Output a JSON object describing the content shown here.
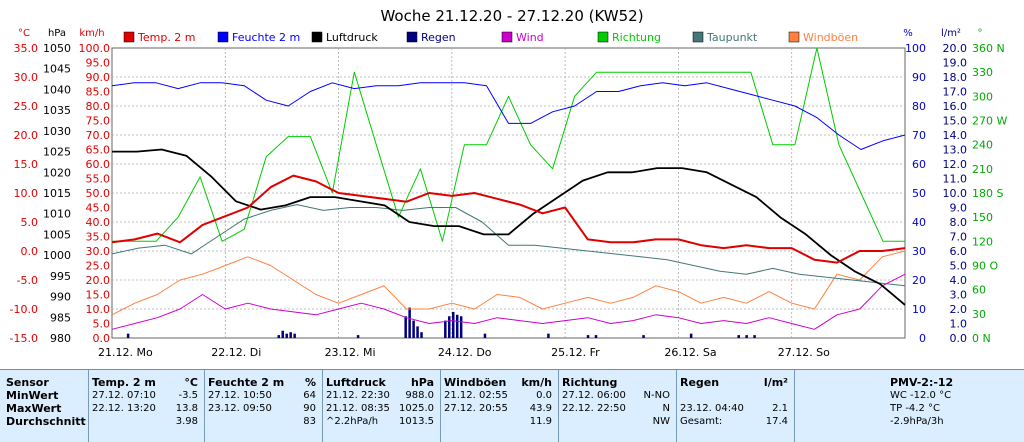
{
  "title": "Woche 21.12.20 - 27.12.20 (KW52)",
  "legend": [
    {
      "label": "Temp. 2 m",
      "color": "#e00000"
    },
    {
      "label": "Feuchte  2 m",
      "color": "#0000ff"
    },
    {
      "label": "Luftdruck",
      "color": "#000000"
    },
    {
      "label": "Regen",
      "color": "#000080"
    },
    {
      "label": "Wind",
      "color": "#cc00cc"
    },
    {
      "label": "Richtung",
      "color": "#00cc00"
    },
    {
      "label": "Taupunkt",
      "color": "#447777"
    },
    {
      "label": "Windböen",
      "color": "#ff8040"
    }
  ],
  "chart_data": {
    "type": "line",
    "title": "Woche 21.12.20 - 27.12.20 (KW52)",
    "x_labels": [
      "21.12.  Mo",
      "22.12.  Di",
      "23.12.  Mi",
      "24.12.  Do",
      "25.12.  Fr",
      "26.12.  Sa",
      "27.12.  So"
    ],
    "axes": {
      "temp": {
        "unit": "°C",
        "ticks": [
          "35.0",
          "30.0",
          "25.0",
          "20.0",
          "15.0",
          "10.0",
          "5.0",
          "0.0",
          "-5.0",
          "-10.0",
          "-15.0"
        ],
        "range": [
          -15,
          35
        ]
      },
      "pressure": {
        "unit": "hPa",
        "ticks": [
          "1050",
          "1045",
          "1040",
          "1035",
          "1030",
          "1025",
          "1020",
          "1015",
          "1010",
          "1005",
          "1000",
          "995",
          "990",
          "985",
          "980"
        ],
        "range": [
          980,
          1050
        ]
      },
      "wind": {
        "unit": "km/h",
        "ticks": [
          "100.0",
          "95.0",
          "90.0",
          "85.0",
          "80.0",
          "75.0",
          "70.0",
          "65.0",
          "60.0",
          "55.0",
          "50.0",
          "45.0",
          "40.0",
          "35.0",
          "30.0",
          "25.0",
          "20.0",
          "15.0",
          "10.0",
          "5.0",
          "0.0"
        ],
        "range": [
          0,
          100
        ]
      },
      "humidity": {
        "unit": "%",
        "ticks": [
          "100",
          "90",
          "80",
          "70",
          "60",
          "50",
          "40",
          "30",
          "20",
          "10",
          "0"
        ],
        "range": [
          0,
          100
        ]
      },
      "rain": {
        "unit": "l/m²",
        "ticks": [
          "20.0",
          "19.0",
          "18.0",
          "17.0",
          "16.0",
          "15.0",
          "14.0",
          "13.0",
          "12.0",
          "11.0",
          "10.0",
          "9.0",
          "8.0",
          "7.0",
          "6.0",
          "5.0",
          "4.0",
          "3.0",
          "2.0",
          "1.0",
          "0.0"
        ],
        "range": [
          0,
          20
        ]
      },
      "direction": {
        "unit": "°",
        "ticks": [
          "360 N",
          "330",
          "300",
          "270 W",
          "240",
          "210",
          "180 S",
          "150",
          "120",
          "90 O",
          "60",
          "30",
          "0 N"
        ],
        "range": [
          0,
          360
        ]
      }
    },
    "series": [
      {
        "name": "Temp. 2 m",
        "color": "#e00000",
        "axis": "temp",
        "values": [
          1.5,
          2.0,
          3.0,
          1.5,
          4.5,
          6.0,
          7.5,
          11.0,
          13.0,
          12.0,
          10.0,
          9.5,
          9.0,
          8.5,
          10.0,
          9.5,
          10.0,
          9.0,
          8.0,
          6.5,
          7.5,
          2.0,
          1.5,
          1.5,
          2.0,
          2.0,
          1.0,
          0.5,
          1.0,
          0.5,
          0.5,
          -1.5,
          -2.0,
          0.0,
          0.0,
          0.5
        ]
      },
      {
        "name": "Feuchte  2 m",
        "color": "#0000ff",
        "axis": "humidity",
        "values": [
          87,
          88,
          88,
          86,
          88,
          88,
          87,
          82,
          80,
          85,
          88,
          86,
          87,
          87,
          88,
          88,
          88,
          87,
          74,
          74,
          78,
          80,
          85,
          85,
          87,
          88,
          87,
          88,
          86,
          84,
          82,
          80,
          76,
          70,
          65,
          68,
          70
        ]
      },
      {
        "name": "Luftdruck",
        "color": "#000000",
        "axis": "pressure",
        "values": [
          1025,
          1025,
          1025.5,
          1024,
          1019,
          1013,
          1011,
          1012,
          1014,
          1014,
          1013,
          1012,
          1008,
          1007,
          1007,
          1005,
          1005,
          1010,
          1014,
          1018,
          1020,
          1020,
          1021,
          1021,
          1020,
          1017,
          1014,
          1009,
          1005,
          1000,
          996,
          993,
          988
        ]
      },
      {
        "name": "Taupunkt",
        "color": "#447777",
        "axis": "temp",
        "values": [
          -0.5,
          0.5,
          1.0,
          -0.5,
          2.5,
          5.5,
          7.0,
          8.0,
          7.0,
          7.5,
          7.5,
          7.0,
          7.5,
          7.5,
          5.0,
          1.0,
          1.0,
          0.5,
          0.0,
          -0.5,
          -1.0,
          -1.5,
          -2.5,
          -3.5,
          -4.0,
          -3.0,
          -4.0,
          -4.5,
          -5.0,
          -5.5,
          -6.0
        ]
      },
      {
        "name": "Richtung",
        "color": "#00cc00",
        "axis": "direction",
        "values": [
          120,
          120,
          120,
          150,
          200,
          120,
          135,
          225,
          250,
          250,
          180,
          330,
          240,
          150,
          210,
          120,
          240,
          240,
          300,
          240,
          210,
          300,
          330,
          330,
          330,
          330,
          330,
          330,
          330,
          330,
          240,
          240,
          360,
          240,
          180,
          120,
          120
        ]
      },
      {
        "name": "Wind",
        "color": "#cc00cc",
        "axis": "wind",
        "values": [
          3,
          5,
          7,
          10,
          15,
          10,
          12,
          10,
          9,
          8,
          10,
          12,
          10,
          7,
          5,
          6,
          5,
          7,
          6,
          5,
          6,
          7,
          5,
          6,
          8,
          7,
          5,
          6,
          5,
          7,
          5,
          3,
          8,
          10,
          18,
          22
        ]
      },
      {
        "name": "Windböen",
        "color": "#ff8040",
        "axis": "wind",
        "values": [
          8,
          12,
          15,
          20,
          22,
          25,
          28,
          25,
          20,
          15,
          12,
          15,
          18,
          10,
          10,
          12,
          10,
          15,
          14,
          10,
          12,
          14,
          12,
          14,
          18,
          16,
          12,
          14,
          12,
          16,
          12,
          10,
          22,
          20,
          28,
          30
        ]
      },
      {
        "name": "Regen",
        "color": "#000080",
        "axis": "rain",
        "type": "bar",
        "values": [
          0,
          0,
          0.3,
          0.5,
          0.3,
          0,
          0,
          0,
          0.5,
          0.8,
          0.5,
          0,
          1.8,
          2.1,
          1.5,
          1.6,
          0.5,
          0.3,
          0,
          0.3,
          0,
          0,
          0,
          0,
          0,
          0,
          0.2,
          0
        ]
      }
    ],
    "rain_bar_positions": [
      0.02,
      0.21,
      0.215,
      0.22,
      0.225,
      0.23,
      0.31,
      0.37,
      0.375,
      0.38,
      0.385,
      0.39,
      0.42,
      0.425,
      0.43,
      0.435,
      0.44,
      0.47,
      0.55,
      0.6,
      0.61,
      0.67,
      0.73,
      0.79,
      0.8,
      0.81
    ]
  },
  "stats": {
    "columns": [
      {
        "header": "Sensor",
        "rows": [
          "MinWert",
          "MaxWert",
          "Durchschnitt"
        ]
      },
      {
        "header": "Temp. 2 m",
        "unit": "°C",
        "rows": [
          [
            "27.12.  07:10",
            "-3.5"
          ],
          [
            "22.12.  13:20",
            "13.8"
          ],
          [
            "",
            "3.98"
          ]
        ]
      },
      {
        "header": "Feuchte  2 m",
        "unit": "%",
        "rows": [
          [
            "27.12.  10:50",
            "64"
          ],
          [
            "23.12.  09:50",
            "90"
          ],
          [
            "",
            "83"
          ]
        ]
      },
      {
        "header": "Luftdruck",
        "unit": "hPa",
        "rows": [
          [
            "21.12.  22:30",
            "988.0"
          ],
          [
            "21.12.  08:35",
            "1025.0"
          ],
          [
            "^2.2hPa/h",
            "1013.5"
          ]
        ]
      },
      {
        "header": "Windböen",
        "unit": "km/h",
        "rows": [
          [
            "21.12.  02:55",
            "0.0"
          ],
          [
            "27.12.  20:55",
            "43.9"
          ],
          [
            "",
            "11.9"
          ]
        ]
      },
      {
        "header": "Richtung",
        "unit": "",
        "rows": [
          [
            "27.12.  06:00",
            "N-NO"
          ],
          [
            "22.12.  22:50",
            "N"
          ],
          [
            "",
            "NW"
          ]
        ]
      },
      {
        "header": "Regen",
        "unit": "l/m²",
        "rows": [
          [
            "",
            ""
          ],
          [
            "23.12.  04:40",
            "2.1"
          ],
          [
            "Gesamt:",
            "17.4"
          ]
        ]
      },
      {
        "header": "PMV-2:-12",
        "unit": "",
        "rows": [
          "WC -12.0 °C",
          "TP -4.2 °C",
          "-2.9hPa/3h"
        ]
      }
    ]
  }
}
